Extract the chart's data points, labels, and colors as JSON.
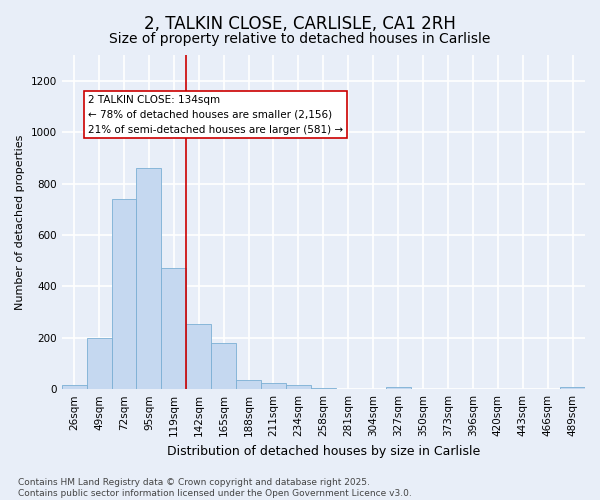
{
  "title": "2, TALKIN CLOSE, CARLISLE, CA1 2RH",
  "subtitle": "Size of property relative to detached houses in Carlisle",
  "xlabel": "Distribution of detached houses by size in Carlisle",
  "ylabel": "Number of detached properties",
  "categories": [
    "26sqm",
    "49sqm",
    "72sqm",
    "95sqm",
    "119sqm",
    "142sqm",
    "165sqm",
    "188sqm",
    "211sqm",
    "234sqm",
    "258sqm",
    "281sqm",
    "304sqm",
    "327sqm",
    "350sqm",
    "373sqm",
    "396sqm",
    "420sqm",
    "443sqm",
    "466sqm",
    "489sqm"
  ],
  "bar_heights": [
    15,
    200,
    740,
    860,
    470,
    255,
    180,
    35,
    25,
    18,
    5,
    0,
    0,
    8,
    0,
    0,
    0,
    0,
    0,
    0,
    8
  ],
  "bar_color": "#c5d8f0",
  "bar_edgecolor": "#7bafd4",
  "background_color": "#e8eef8",
  "grid_color": "#ffffff",
  "annotation_text_line1": "2 TALKIN CLOSE: 134sqm",
  "annotation_text_line2": "← 78% of detached houses are smaller (2,156)",
  "annotation_text_line3": "21% of semi-detached houses are larger (581) →",
  "annotation_box_color": "#ffffff",
  "annotation_border_color": "#cc0000",
  "vline_x": 4.5,
  "vline_color": "#cc0000",
  "ylim": [
    0,
    1300
  ],
  "yticks": [
    0,
    200,
    400,
    600,
    800,
    1000,
    1200
  ],
  "title_fontsize": 12,
  "subtitle_fontsize": 10,
  "xlabel_fontsize": 9,
  "ylabel_fontsize": 8,
  "tick_fontsize": 7.5,
  "annotation_fontsize": 7.5,
  "footer_text": "Contains HM Land Registry data © Crown copyright and database right 2025.\nContains public sector information licensed under the Open Government Licence v3.0.",
  "footer_fontsize": 6.5
}
